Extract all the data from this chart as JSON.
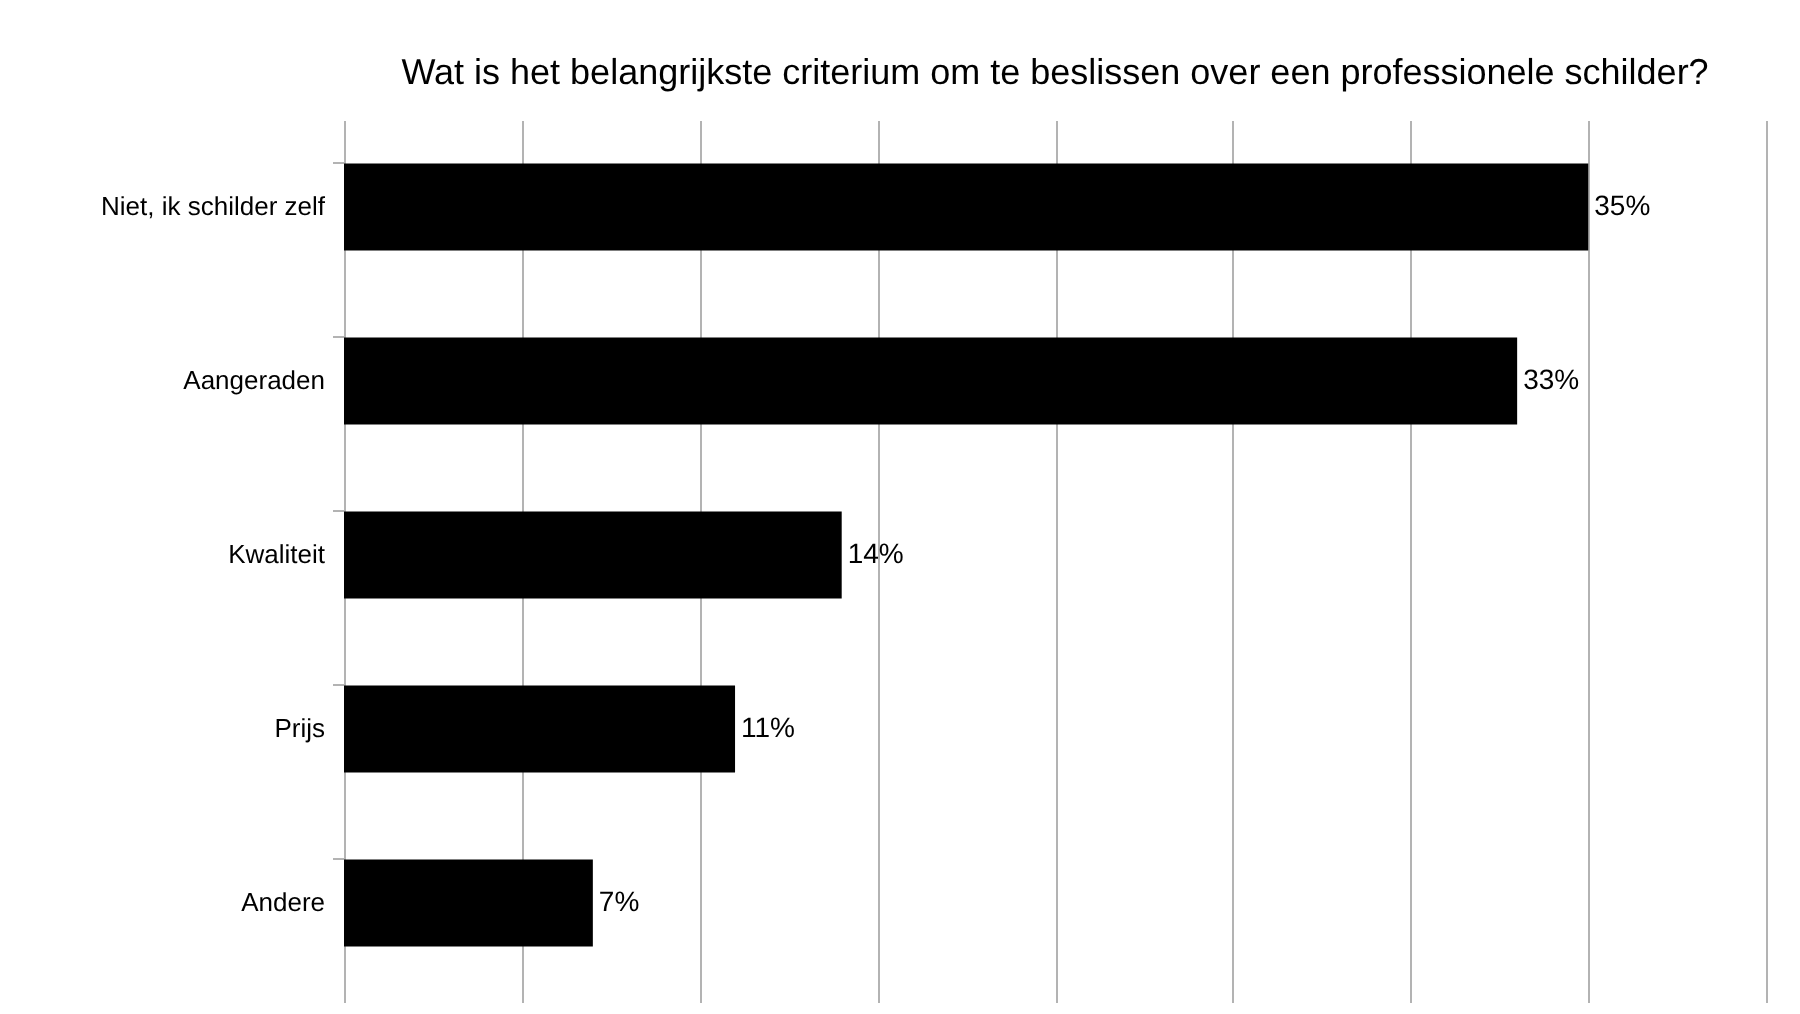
{
  "chart_data": {
    "type": "bar",
    "orientation": "horizontal",
    "title": "Wat is het belangrijkste criterium om te beslissen over een professionele schilder?",
    "categories": [
      "Niet, ik schilder zelf",
      "Aangeraden",
      "Kwaliteit",
      "Prijs",
      "Andere"
    ],
    "values": [
      35,
      33,
      14,
      11,
      7
    ],
    "value_labels": [
      "35%",
      "33%",
      "14%",
      "11%",
      "7%"
    ],
    "color": "#000000",
    "xlim": [
      0,
      40
    ],
    "xticks": [
      {
        "value": 0,
        "label": null
      },
      {
        "value": 5,
        "label": null
      },
      {
        "value": 10,
        "label": null
      },
      {
        "value": 15,
        "label": null
      },
      {
        "value": 20,
        "label": null
      },
      {
        "value": 25,
        "label": null
      },
      {
        "value": 30,
        "label": null
      },
      {
        "value": 35,
        "label": null
      },
      {
        "value": 40,
        "label": null
      }
    ],
    "tick_labels": "y",
    "grid": "x"
  }
}
